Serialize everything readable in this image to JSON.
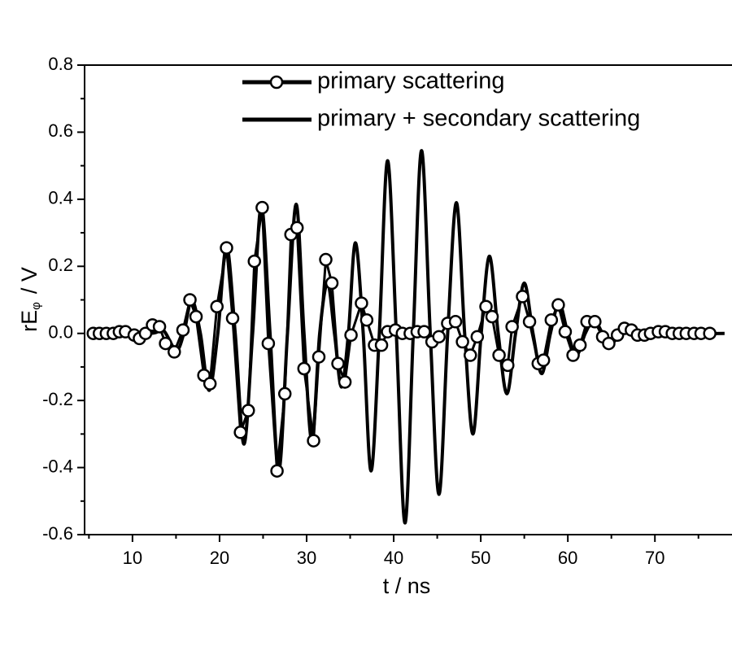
{
  "chart_data": {
    "type": "line",
    "xlabel": "t / ns",
    "ylabel": {
      "main": "rE",
      "sub": "φ",
      "unit": "/ V"
    },
    "xlim": [
      4.5,
      78.2
    ],
    "ylim": [
      -0.6,
      0.8
    ],
    "xticks": [
      10,
      20,
      30,
      40,
      50,
      60,
      70
    ],
    "xminorticks": [
      5,
      15,
      25,
      35,
      45,
      55,
      65,
      75
    ],
    "yticks": [
      -0.6,
      -0.4,
      -0.2,
      {
        "value": 0,
        "label": "0.0"
      },
      0.2,
      0.4,
      0.6,
      0.8
    ],
    "yminorticks": [
      -0.5,
      -0.3,
      -0.1,
      0.1,
      0.3,
      0.5,
      0.7
    ],
    "legend": "top",
    "series": [
      {
        "name": "primary scattering",
        "color": "#000000",
        "marker": "circle",
        "x": [
          5.5,
          6.2,
          7,
          7.8,
          8.5,
          9.2,
          10.2,
          10.8,
          11.5,
          12.3,
          13.1,
          13.8,
          14.8,
          15.8,
          16.6,
          17.3,
          18.2,
          18.9,
          19.7,
          20.8,
          21.5,
          22.4,
          23.3,
          24.0,
          24.9,
          25.6,
          26.6,
          27.5,
          28.2,
          28.9,
          29.7,
          30.8,
          31.4,
          32.2,
          32.9,
          33.6,
          34.4,
          35.1,
          36.3,
          36.9,
          37.8,
          38.6,
          39.3,
          40.2,
          41.0,
          41.9,
          42.7,
          43.5,
          44.4,
          45.2,
          46.2,
          47.1,
          47.9,
          48.8,
          49.6,
          50.6,
          51.3,
          52.1,
          53.1,
          53.6,
          54.8,
          55.6,
          56.6,
          57.2,
          58.1,
          58.9,
          59.7,
          60.6,
          61.4,
          62.2,
          63.1,
          64,
          64.7,
          65.7,
          66.5,
          67.3,
          68,
          68.8,
          69.5,
          70.4,
          71.2,
          72,
          72.8,
          73.6,
          74.5,
          75.3,
          76.3
        ],
        "values": [
          0,
          0,
          0,
          0,
          0.005,
          0.005,
          -0.005,
          -0.015,
          0,
          0.025,
          0.02,
          -0.03,
          -0.055,
          0.01,
          0.1,
          0.05,
          -0.125,
          -0.15,
          0.08,
          0.255,
          0.045,
          -0.295,
          -0.23,
          0.215,
          0.375,
          -0.03,
          -0.41,
          -0.18,
          0.295,
          0.315,
          -0.105,
          -0.32,
          -0.07,
          0.22,
          0.15,
          -0.09,
          -0.145,
          -0.005,
          0.09,
          0.04,
          -0.035,
          -0.035,
          0.005,
          0.01,
          0,
          0,
          0.005,
          0.005,
          -0.025,
          -0.01,
          0.03,
          0.035,
          -0.025,
          -0.065,
          -0.01,
          0.08,
          0.05,
          -0.065,
          -0.095,
          0.02,
          0.11,
          0.035,
          -0.09,
          -0.08,
          0.04,
          0.085,
          0.005,
          -0.065,
          -0.035,
          0.035,
          0.035,
          -0.01,
          -0.03,
          -0.005,
          0.015,
          0.01,
          -0.005,
          -0.005,
          0,
          0.005,
          0.005,
          0,
          0,
          0,
          0,
          0,
          0
        ]
      },
      {
        "name": "primary + secondary scattering",
        "color": "#000000",
        "marker": "none",
        "x": [
          5,
          12,
          13.5,
          15,
          15.9,
          16.8,
          17.8,
          18.8,
          19.8,
          20.8,
          21.8,
          22.8,
          23.8,
          24.8,
          25.8,
          26.8,
          27.8,
          28.8,
          29.7,
          30.6,
          31.5,
          32.4,
          33.2,
          34,
          34.8,
          35.6,
          36.5,
          37.4,
          38.35,
          39.3,
          40.3,
          41.3,
          42.25,
          43.2,
          44.2,
          45.2,
          46.2,
          47.2,
          48.15,
          49.1,
          50.05,
          51,
          52,
          53,
          54,
          55,
          56,
          57,
          58,
          59,
          60,
          61,
          62,
          63,
          64,
          65,
          66,
          67,
          68,
          78
        ],
        "values": [
          0,
          0,
          0.01,
          -0.05,
          0,
          0.1,
          0,
          -0.17,
          0,
          0.26,
          0,
          -0.33,
          0,
          0.38,
          0,
          -0.41,
          0,
          0.385,
          0,
          -0.32,
          0,
          0.15,
          0,
          -0.16,
          0,
          0.27,
          0,
          -0.41,
          0,
          0.515,
          0,
          -0.565,
          0,
          0.545,
          0,
          -0.48,
          0,
          0.39,
          0,
          -0.3,
          0,
          0.23,
          0,
          -0.18,
          0,
          0.15,
          0,
          -0.12,
          0,
          0.09,
          0,
          -0.065,
          0,
          0.04,
          0,
          -0.03,
          0,
          0.015,
          0,
          0
        ]
      }
    ]
  }
}
